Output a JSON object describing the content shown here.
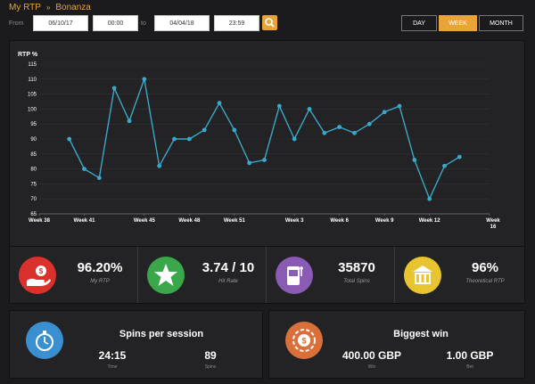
{
  "breadcrumb": {
    "root": "My RTP",
    "separator": "»",
    "current": "Bonanza"
  },
  "filters": {
    "from_label": "From",
    "from_date": "06/10/17",
    "from_time": "00:00",
    "to_label": "to",
    "to_date": "04/04/18",
    "to_time": "23:59",
    "periods": [
      "DAY",
      "WEEK",
      "MONTH"
    ],
    "active_period": "WEEK"
  },
  "chart_data": {
    "type": "line",
    "ylabel": "RTP %",
    "ylim": [
      65,
      115
    ],
    "yticks": [
      65,
      70,
      75,
      80,
      85,
      90,
      95,
      100,
      105,
      110,
      115
    ],
    "xlim": [
      38,
      16
    ],
    "x_ticks": [
      "Week 38",
      "Week 41",
      "Week 45",
      "Week 48",
      "Week 51",
      "Week 3",
      "Week 6",
      "Week 9",
      "Week 12",
      "Week 16"
    ],
    "color": "#3aa8c8",
    "series": [
      {
        "x": [
          "Week 40",
          "Week 41",
          "Week 42",
          "Week 43",
          "Week 44",
          "Week 45",
          "Week 46",
          "Week 47",
          "Week 48",
          "Week 49",
          "Week 50",
          "Week 51",
          "Week 52",
          "Week 1",
          "Week 2",
          "Week 3",
          "Week 4",
          "Week 5",
          "Week 6",
          "Week 7",
          "Week 8",
          "Week 9",
          "Week 10",
          "Week 11",
          "Week 12",
          "Week 13",
          "Week 14"
        ],
        "values": [
          90,
          80,
          77,
          107,
          96,
          110,
          81,
          90,
          90,
          93,
          102,
          93,
          82,
          83,
          101,
          90,
          100,
          92,
          94,
          92,
          95,
          99,
          101,
          83,
          70,
          81,
          84
        ]
      }
    ]
  },
  "stats": [
    {
      "value": "96.20%",
      "label": "My RTP",
      "icon": "hand-coin-icon",
      "color": "#d9322d"
    },
    {
      "value": "3.74 / 10",
      "label": "Hit Rate",
      "icon": "star-icon",
      "color": "#3aa84a"
    },
    {
      "value": "35870",
      "label": "Total Spins",
      "icon": "slot-machine-icon",
      "color": "#8a5bb5"
    },
    {
      "value": "96%",
      "label": "Theoretical RTP",
      "icon": "building-icon",
      "color": "#e8c530"
    }
  ],
  "session": {
    "title": "Spins per session",
    "time_value": "24:15",
    "time_label": "Time",
    "spins_value": "89",
    "spins_label": "Spins",
    "icon": "stopwatch-icon",
    "color": "#3a8fd0"
  },
  "biggest": {
    "title": "Biggest win",
    "win_value": "400.00 GBP",
    "win_label": "Win",
    "bet_value": "1.00 GBP",
    "bet_label": "Bet",
    "icon": "casino-chip-icon",
    "color": "#d9703a"
  }
}
